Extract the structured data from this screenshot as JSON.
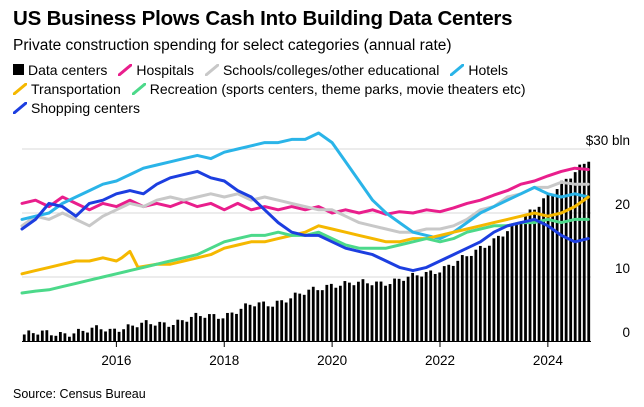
{
  "title": "US Business Plows Cash Into Building Data Centers",
  "subtitle": "Private construction spending for select categories (annual rate)",
  "source": "Source: Census Bureau",
  "chart_data": {
    "type": "line",
    "title": "US Business Plows Cash Into Building Data Centers",
    "subtitle": "Private construction spending for select categories (annual rate)",
    "unit_label": "$30 bln",
    "xlabel": "",
    "ylabel": "",
    "xlim": [
      2014.25,
      2024.8
    ],
    "ylim": [
      0,
      30
    ],
    "x_ticks": [
      2016,
      2018,
      2020,
      2022,
      2024
    ],
    "y_ticks": [
      0,
      10,
      20,
      30
    ],
    "y_tick_labels": [
      "0",
      "10",
      "20",
      "$30 bln"
    ],
    "grid": "horizontal",
    "legend_position": "top",
    "data_centers": {
      "name": "Data centers",
      "type": "bar",
      "color": "#000000",
      "points": [
        [
          2014.25,
          1.0
        ],
        [
          2015.0,
          1.3
        ],
        [
          2015.5,
          1.5
        ],
        [
          2015.7,
          2.0
        ],
        [
          2015.9,
          1.7
        ],
        [
          2016.0,
          2.1
        ],
        [
          2016.5,
          2.5
        ],
        [
          2017.0,
          2.9
        ],
        [
          2017.5,
          3.7
        ],
        [
          2018.0,
          4.1
        ],
        [
          2018.5,
          5.5
        ],
        [
          2018.9,
          5.9
        ],
        [
          2019.0,
          6.3
        ],
        [
          2019.5,
          7.4
        ],
        [
          2020.0,
          9.0
        ],
        [
          2020.5,
          8.9
        ],
        [
          2021.0,
          9.3
        ],
        [
          2021.5,
          9.9
        ],
        [
          2022.0,
          11.3
        ],
        [
          2022.5,
          13.0
        ],
        [
          2023.0,
          16.0
        ],
        [
          2023.5,
          18.5
        ],
        [
          2024.0,
          23.0
        ],
        [
          2024.5,
          26.0
        ],
        [
          2024.75,
          28.5
        ]
      ]
    },
    "series": [
      {
        "name": "Hospitals",
        "color": "#e91e8c",
        "points": [
          [
            2014.25,
            21.5
          ],
          [
            2014.5,
            22.0
          ],
          [
            2014.75,
            21.0
          ],
          [
            2015.0,
            22.5
          ],
          [
            2015.25,
            21.5
          ],
          [
            2015.5,
            20.5
          ],
          [
            2015.75,
            21.5
          ],
          [
            2016.0,
            21.0
          ],
          [
            2016.25,
            22.0
          ],
          [
            2016.5,
            21.0
          ],
          [
            2016.75,
            21.5
          ],
          [
            2017.0,
            21.0
          ],
          [
            2017.25,
            21.8
          ],
          [
            2017.5,
            21.0
          ],
          [
            2017.75,
            21.5
          ],
          [
            2018.0,
            20.5
          ],
          [
            2018.25,
            21.5
          ],
          [
            2018.5,
            20.5
          ],
          [
            2018.75,
            21.0
          ],
          [
            2019.0,
            20.5
          ],
          [
            2019.25,
            21.0
          ],
          [
            2019.5,
            20.5
          ],
          [
            2019.75,
            21.0
          ],
          [
            2020.0,
            20.0
          ],
          [
            2020.25,
            20.5
          ],
          [
            2020.5,
            20.0
          ],
          [
            2020.75,
            20.5
          ],
          [
            2021.0,
            19.8
          ],
          [
            2021.25,
            20.2
          ],
          [
            2021.5,
            20.0
          ],
          [
            2021.75,
            20.5
          ],
          [
            2022.0,
            20.2
          ],
          [
            2022.25,
            20.8
          ],
          [
            2022.5,
            21.5
          ],
          [
            2022.75,
            22.0
          ],
          [
            2023.0,
            22.8
          ],
          [
            2023.25,
            23.5
          ],
          [
            2023.5,
            24.5
          ],
          [
            2023.75,
            25.0
          ],
          [
            2024.0,
            25.8
          ],
          [
            2024.25,
            26.5
          ],
          [
            2024.5,
            27.0
          ],
          [
            2024.75,
            26.8
          ]
        ]
      },
      {
        "name": "Schools/colleges/other educational",
        "color": "#c8c8c8",
        "points": [
          [
            2014.25,
            18.0
          ],
          [
            2014.5,
            19.5
          ],
          [
            2014.75,
            19.0
          ],
          [
            2015.0,
            20.0
          ],
          [
            2015.25,
            19.0
          ],
          [
            2015.5,
            18.0
          ],
          [
            2015.75,
            19.5
          ],
          [
            2016.0,
            20.5
          ],
          [
            2016.25,
            21.5
          ],
          [
            2016.5,
            21.0
          ],
          [
            2016.75,
            22.0
          ],
          [
            2017.0,
            22.5
          ],
          [
            2017.25,
            22.0
          ],
          [
            2017.5,
            22.5
          ],
          [
            2017.75,
            23.0
          ],
          [
            2018.0,
            22.5
          ],
          [
            2018.25,
            23.0
          ],
          [
            2018.5,
            22.0
          ],
          [
            2018.75,
            22.5
          ],
          [
            2019.0,
            22.0
          ],
          [
            2019.25,
            21.5
          ],
          [
            2019.5,
            21.0
          ],
          [
            2019.75,
            20.5
          ],
          [
            2020.0,
            20.5
          ],
          [
            2020.25,
            19.5
          ],
          [
            2020.5,
            18.5
          ],
          [
            2020.75,
            18.0
          ],
          [
            2021.0,
            17.5
          ],
          [
            2021.25,
            17.0
          ],
          [
            2021.5,
            17.0
          ],
          [
            2021.75,
            17.5
          ],
          [
            2022.0,
            17.5
          ],
          [
            2022.25,
            18.0
          ],
          [
            2022.5,
            19.0
          ],
          [
            2022.75,
            20.5
          ],
          [
            2023.0,
            21.0
          ],
          [
            2023.25,
            22.5
          ],
          [
            2023.5,
            23.0
          ],
          [
            2023.75,
            24.0
          ],
          [
            2024.0,
            24.0
          ],
          [
            2024.25,
            24.8
          ],
          [
            2024.5,
            24.5
          ],
          [
            2024.75,
            24.5
          ]
        ]
      },
      {
        "name": "Hotels",
        "color": "#2ab4e8",
        "points": [
          [
            2014.25,
            19.0
          ],
          [
            2014.5,
            19.5
          ],
          [
            2014.75,
            20.0
          ],
          [
            2015.0,
            21.5
          ],
          [
            2015.25,
            22.5
          ],
          [
            2015.5,
            23.5
          ],
          [
            2015.75,
            24.5
          ],
          [
            2016.0,
            25.0
          ],
          [
            2016.25,
            26.0
          ],
          [
            2016.5,
            27.0
          ],
          [
            2016.75,
            27.5
          ],
          [
            2017.0,
            28.0
          ],
          [
            2017.25,
            28.5
          ],
          [
            2017.5,
            29.0
          ],
          [
            2017.75,
            28.5
          ],
          [
            2018.0,
            29.5
          ],
          [
            2018.25,
            30.0
          ],
          [
            2018.5,
            30.5
          ],
          [
            2018.75,
            31.0
          ],
          [
            2019.0,
            31.0
          ],
          [
            2019.25,
            31.5
          ],
          [
            2019.5,
            31.5
          ],
          [
            2019.75,
            32.5
          ],
          [
            2020.0,
            31.0
          ],
          [
            2020.25,
            28.0
          ],
          [
            2020.5,
            25.0
          ],
          [
            2020.75,
            22.0
          ],
          [
            2021.0,
            20.0
          ],
          [
            2021.25,
            18.5
          ],
          [
            2021.5,
            17.0
          ],
          [
            2021.75,
            16.5
          ],
          [
            2022.0,
            16.0
          ],
          [
            2022.25,
            17.0
          ],
          [
            2022.5,
            18.5
          ],
          [
            2022.75,
            20.0
          ],
          [
            2023.0,
            21.0
          ],
          [
            2023.25,
            22.0
          ],
          [
            2023.5,
            23.0
          ],
          [
            2023.75,
            24.0
          ],
          [
            2024.0,
            23.0
          ],
          [
            2024.25,
            22.5
          ],
          [
            2024.5,
            23.0
          ],
          [
            2024.75,
            22.5
          ]
        ]
      },
      {
        "name": "Transportation",
        "color": "#f5b800",
        "points": [
          [
            2014.25,
            10.5
          ],
          [
            2014.5,
            11.0
          ],
          [
            2014.75,
            11.5
          ],
          [
            2015.0,
            12.0
          ],
          [
            2015.25,
            12.5
          ],
          [
            2015.5,
            12.5
          ],
          [
            2015.75,
            13.0
          ],
          [
            2016.0,
            12.5
          ],
          [
            2016.1,
            13.0
          ],
          [
            2016.25,
            14.0
          ],
          [
            2016.4,
            11.5
          ],
          [
            2016.75,
            12.0
          ],
          [
            2017.0,
            12.0
          ],
          [
            2017.25,
            12.5
          ],
          [
            2017.5,
            13.0
          ],
          [
            2017.75,
            13.5
          ],
          [
            2018.0,
            14.5
          ],
          [
            2018.25,
            15.0
          ],
          [
            2018.5,
            15.5
          ],
          [
            2018.75,
            15.5
          ],
          [
            2019.0,
            16.0
          ],
          [
            2019.25,
            16.5
          ],
          [
            2019.5,
            17.0
          ],
          [
            2019.75,
            18.0
          ],
          [
            2020.0,
            17.5
          ],
          [
            2020.25,
            17.0
          ],
          [
            2020.5,
            16.5
          ],
          [
            2020.75,
            16.0
          ],
          [
            2021.0,
            15.5
          ],
          [
            2021.25,
            15.5
          ],
          [
            2021.5,
            16.0
          ],
          [
            2021.75,
            16.0
          ],
          [
            2022.0,
            16.5
          ],
          [
            2022.25,
            17.0
          ],
          [
            2022.5,
            17.5
          ],
          [
            2022.75,
            18.0
          ],
          [
            2023.0,
            18.5
          ],
          [
            2023.25,
            19.0
          ],
          [
            2023.5,
            19.5
          ],
          [
            2023.75,
            20.0
          ],
          [
            2024.0,
            19.5
          ],
          [
            2024.25,
            20.0
          ],
          [
            2024.5,
            21.0
          ],
          [
            2024.75,
            22.5
          ]
        ]
      },
      {
        "name": "Recreation (sports centers, theme parks, movie theaters etc)",
        "color": "#4cd98a",
        "points": [
          [
            2014.25,
            7.5
          ],
          [
            2014.5,
            7.8
          ],
          [
            2014.75,
            8.0
          ],
          [
            2015.0,
            8.5
          ],
          [
            2015.25,
            9.0
          ],
          [
            2015.5,
            9.5
          ],
          [
            2015.75,
            10.0
          ],
          [
            2016.0,
            10.5
          ],
          [
            2016.25,
            11.0
          ],
          [
            2016.5,
            11.5
          ],
          [
            2016.75,
            12.0
          ],
          [
            2017.0,
            12.5
          ],
          [
            2017.25,
            13.0
          ],
          [
            2017.5,
            13.5
          ],
          [
            2017.75,
            14.5
          ],
          [
            2018.0,
            15.5
          ],
          [
            2018.25,
            16.0
          ],
          [
            2018.5,
            16.5
          ],
          [
            2018.75,
            16.5
          ],
          [
            2019.0,
            17.0
          ],
          [
            2019.25,
            16.5
          ],
          [
            2019.5,
            16.5
          ],
          [
            2019.75,
            17.0
          ],
          [
            2020.0,
            16.0
          ],
          [
            2020.25,
            15.0
          ],
          [
            2020.5,
            14.5
          ],
          [
            2020.75,
            14.5
          ],
          [
            2021.0,
            14.5
          ],
          [
            2021.25,
            15.0
          ],
          [
            2021.5,
            15.5
          ],
          [
            2021.75,
            16.0
          ],
          [
            2022.0,
            15.5
          ],
          [
            2022.25,
            16.0
          ],
          [
            2022.5,
            17.0
          ],
          [
            2022.75,
            17.5
          ],
          [
            2023.0,
            18.0
          ],
          [
            2023.25,
            18.0
          ],
          [
            2023.5,
            18.5
          ],
          [
            2023.75,
            18.5
          ],
          [
            2024.0,
            19.0
          ],
          [
            2024.25,
            18.5
          ],
          [
            2024.5,
            19.0
          ],
          [
            2024.75,
            19.0
          ]
        ]
      },
      {
        "name": "Shopping centers",
        "color": "#1c3ee0",
        "points": [
          [
            2014.25,
            17.5
          ],
          [
            2014.5,
            19.0
          ],
          [
            2014.75,
            21.5
          ],
          [
            2015.0,
            21.0
          ],
          [
            2015.25,
            19.5
          ],
          [
            2015.5,
            21.5
          ],
          [
            2015.75,
            22.0
          ],
          [
            2016.0,
            23.0
          ],
          [
            2016.25,
            23.5
          ],
          [
            2016.5,
            23.0
          ],
          [
            2016.75,
            24.5
          ],
          [
            2017.0,
            25.5
          ],
          [
            2017.25,
            26.0
          ],
          [
            2017.5,
            26.5
          ],
          [
            2017.75,
            25.5
          ],
          [
            2018.0,
            25.0
          ],
          [
            2018.25,
            23.5
          ],
          [
            2018.5,
            22.5
          ],
          [
            2018.75,
            20.5
          ],
          [
            2019.0,
            18.5
          ],
          [
            2019.25,
            17.0
          ],
          [
            2019.5,
            16.5
          ],
          [
            2019.75,
            16.5
          ],
          [
            2020.0,
            15.5
          ],
          [
            2020.25,
            14.5
          ],
          [
            2020.5,
            14.0
          ],
          [
            2020.75,
            13.5
          ],
          [
            2021.0,
            12.5
          ],
          [
            2021.25,
            11.5
          ],
          [
            2021.5,
            11.0
          ],
          [
            2021.75,
            11.5
          ],
          [
            2022.0,
            12.5
          ],
          [
            2022.25,
            13.5
          ],
          [
            2022.5,
            14.5
          ],
          [
            2022.75,
            15.5
          ],
          [
            2023.0,
            17.0
          ],
          [
            2023.25,
            18.0
          ],
          [
            2023.5,
            18.5
          ],
          [
            2023.75,
            19.0
          ],
          [
            2024.0,
            18.0
          ],
          [
            2024.25,
            16.5
          ],
          [
            2024.5,
            15.5
          ],
          [
            2024.75,
            16.0
          ]
        ]
      }
    ]
  }
}
